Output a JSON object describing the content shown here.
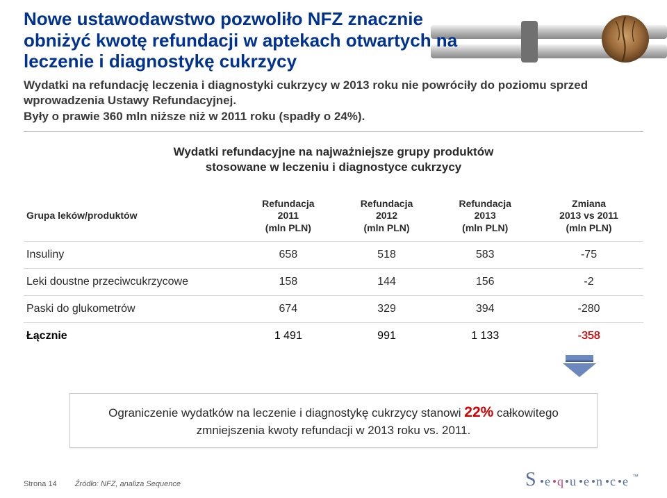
{
  "colors": {
    "title": "#00328f",
    "text": "#2a2a2a",
    "rule": "#bdbdbd",
    "row_border": "#d8d8d8",
    "highlight_red": "#d20000",
    "arrow_fill": "#6d88bf",
    "arrow_shadow": "#3d5a99",
    "logo_base": "#5a6f9e",
    "logo_accent": "#b94a7a",
    "bg": "#ffffff"
  },
  "title": "Nowe ustawodawstwo pozwoliło NFZ znacznie obniżyć kwotę refundacji w aptekach otwartych na leczenie i diagnostykę  cukrzycy",
  "subtitle": "Wydatki na refundację leczenia i diagnostyki cukrzycy w 2013 roku nie powróciły do poziomu sprzed wprowadzenia Ustawy Refundacyjnej.\nByły o prawie 360 mln niższe niż w 2011 roku (spadły o 24%).",
  "chart_title": "Wydatki refundacyjne na najważniejsze grupy produktów\nstosowane w leczeniu i diagnostyce cukrzycy",
  "table": {
    "header_fontsize": 14,
    "body_fontsize": 16,
    "columns": [
      "Grupa leków/produktów",
      "Refundacja\n2011\n(mln PLN)",
      "Refundacja\n2012\n(mln PLN)",
      "Refundacja\n2013\n(mln PLN)",
      "Zmiana\n2013 vs 2011\n(mln PLN)"
    ],
    "rows": [
      {
        "label": "Insuliny",
        "v": [
          "658",
          "518",
          "583",
          "-75"
        ]
      },
      {
        "label": "Leki doustne przeciwcukrzycowe",
        "v": [
          "158",
          "144",
          "156",
          "-2"
        ]
      },
      {
        "label": "Paski do glukometrów",
        "v": [
          "674",
          "329",
          "394",
          "-280"
        ]
      }
    ],
    "total": {
      "label": "Łącznie",
      "v": [
        "1 491",
        "991",
        "1 133",
        "-358"
      ]
    }
  },
  "callout": {
    "pre": "Ograniczenie wydatków na leczenie i diagnostykę cukrzycy stanowi ",
    "pct": "22%",
    "post": " całkowitego zmniejszenia kwoty refundacji w 2013 roku vs. 2011."
  },
  "footer": {
    "page": "Strona 14",
    "source": "Źródło: NFZ, analiza Sequence",
    "logo_text": "Sequence"
  }
}
